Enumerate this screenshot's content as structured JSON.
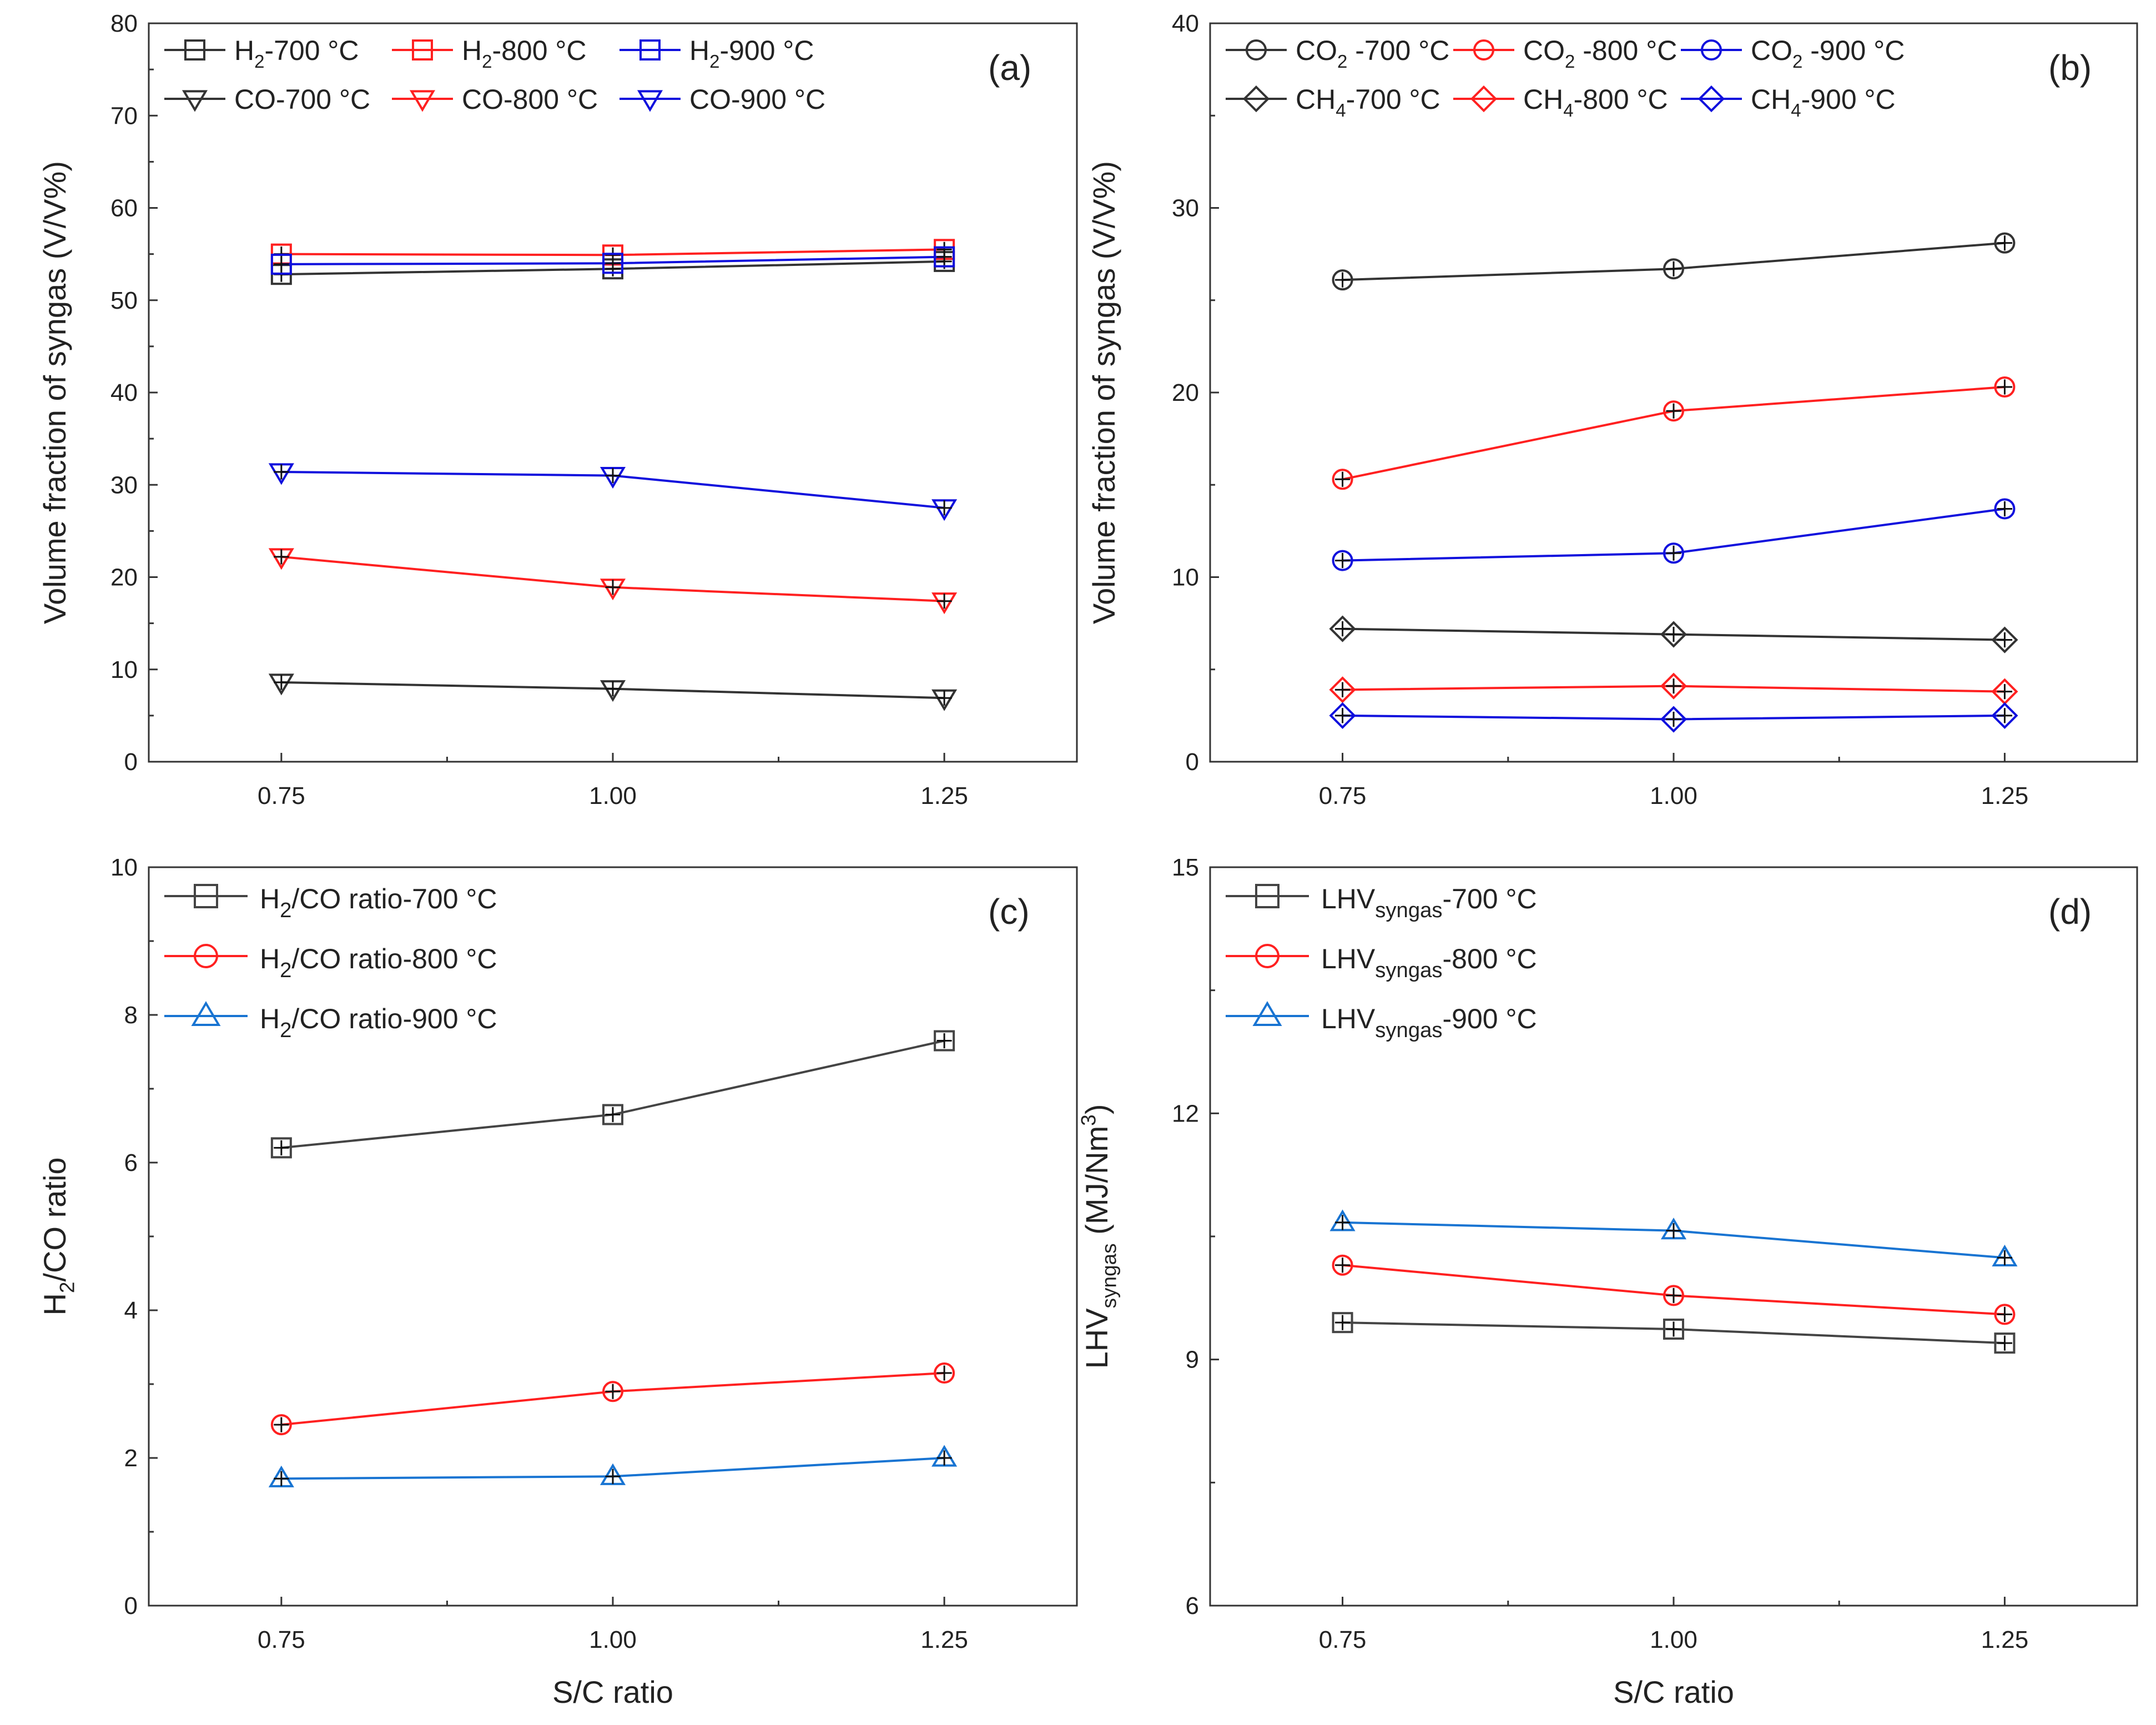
{
  "colors": {
    "c700_a": "#333333",
    "c800": "#ff2020",
    "c900_ab": "#1010dd",
    "c700_cd": "#444444",
    "c900_cd": "#1874d2"
  },
  "chart_data": [
    {
      "id": "a",
      "type": "line",
      "panel_label": "(a)",
      "title": "",
      "xlabel": "",
      "ylabel": "Volume fraction of syngas (V/V%)",
      "x": [
        0.75,
        1.0,
        1.25
      ],
      "xticks": [
        "0.75",
        "1.00",
        "1.25"
      ],
      "xlim": [
        0.65,
        1.35
      ],
      "ylim": [
        0,
        80
      ],
      "yticks": [
        "0",
        "10",
        "20",
        "30",
        "40",
        "50",
        "60",
        "70",
        "80"
      ],
      "legend_position": "top",
      "series": [
        {
          "name": "H2-700 °C",
          "legend": {
            "main": "H",
            "sub": "2",
            "rest": "-700 °C"
          },
          "color": "#333333",
          "marker": "square",
          "values": [
            52.8,
            53.4,
            54.2
          ]
        },
        {
          "name": "H2-800 °C",
          "legend": {
            "main": "H",
            "sub": "2",
            "rest": "-800 °C"
          },
          "color": "#ff2020",
          "marker": "square",
          "values": [
            55.0,
            54.9,
            55.5
          ]
        },
        {
          "name": "H2-900 °C",
          "legend": {
            "main": "H",
            "sub": "2",
            "rest": "-900 °C"
          },
          "color": "#1010dd",
          "marker": "square",
          "values": [
            53.9,
            54.0,
            54.7
          ]
        },
        {
          "name": "CO-700 °C",
          "legend": {
            "main": "CO-700 °C",
            "sub": "",
            "rest": ""
          },
          "color": "#333333",
          "marker": "tri-down",
          "values": [
            8.6,
            7.9,
            6.9
          ]
        },
        {
          "name": "CO-800 °C",
          "legend": {
            "main": "CO-800 °C",
            "sub": "",
            "rest": ""
          },
          "color": "#ff2020",
          "marker": "tri-down",
          "values": [
            22.2,
            18.9,
            17.4
          ]
        },
        {
          "name": "CO-900 °C",
          "legend": {
            "main": "CO-900 °C",
            "sub": "",
            "rest": ""
          },
          "color": "#1010dd",
          "marker": "tri-down",
          "values": [
            31.4,
            31.0,
            27.5
          ]
        }
      ]
    },
    {
      "id": "b",
      "type": "line",
      "panel_label": "(b)",
      "title": "",
      "xlabel": "",
      "ylabel": "Volume fraction of syngas (V/V%)",
      "x": [
        0.75,
        1.0,
        1.25
      ],
      "xticks": [
        "0.75",
        "1.00",
        "1.25"
      ],
      "xlim": [
        0.65,
        1.35
      ],
      "ylim": [
        0,
        40
      ],
      "yticks": [
        "0",
        "10",
        "20",
        "30",
        "40"
      ],
      "legend_position": "top",
      "series": [
        {
          "name": "CO2 -700 °C",
          "legend": {
            "main": "CO",
            "sub": "2",
            "rest": " -700 °C"
          },
          "color": "#333333",
          "marker": "circle",
          "values": [
            26.1,
            26.7,
            28.1
          ]
        },
        {
          "name": "CO2 -800 °C",
          "legend": {
            "main": "CO",
            "sub": "2",
            "rest": " -800 °C"
          },
          "color": "#ff2020",
          "marker": "circle",
          "values": [
            15.3,
            19.0,
            20.3
          ]
        },
        {
          "name": "CO2 -900 °C",
          "legend": {
            "main": "CO",
            "sub": "2",
            "rest": " -900 °C"
          },
          "color": "#1010dd",
          "marker": "circle",
          "values": [
            10.9,
            11.3,
            13.7
          ]
        },
        {
          "name": "CH4-700 °C",
          "legend": {
            "main": "CH",
            "sub": "4",
            "rest": "-700 °C"
          },
          "color": "#333333",
          "marker": "diamond",
          "values": [
            7.2,
            6.9,
            6.6
          ]
        },
        {
          "name": "CH4-800 °C",
          "legend": {
            "main": "CH",
            "sub": "4",
            "rest": "-800 °C"
          },
          "color": "#ff2020",
          "marker": "diamond",
          "values": [
            3.9,
            4.1,
            3.8
          ]
        },
        {
          "name": "CH4-900 °C",
          "legend": {
            "main": "CH",
            "sub": "4",
            "rest": "-900 °C"
          },
          "color": "#1010dd",
          "marker": "diamond",
          "values": [
            2.5,
            2.3,
            2.5
          ]
        }
      ]
    },
    {
      "id": "c",
      "type": "line",
      "panel_label": "(c)",
      "title": "",
      "xlabel": "S/C ratio",
      "ylabel": "H2/CO ratio",
      "ylabel_parts": {
        "main": "H",
        "sub": "2",
        "rest": "/CO ratio"
      },
      "x": [
        0.75,
        1.0,
        1.25
      ],
      "xticks": [
        "0.75",
        "1.00",
        "1.25"
      ],
      "xlim": [
        0.65,
        1.35
      ],
      "ylim": [
        0,
        10
      ],
      "yticks": [
        "0",
        "2",
        "4",
        "6",
        "8",
        "10"
      ],
      "legend_position": "top-left",
      "series": [
        {
          "name": "H2/CO ratio-700 °C",
          "legend": {
            "main": "H",
            "sub": "2",
            "rest": "/CO ratio-700 °C"
          },
          "color": "#444444",
          "marker": "square",
          "values": [
            6.2,
            6.65,
            7.65
          ]
        },
        {
          "name": "H2/CO ratio-800 °C",
          "legend": {
            "main": "H",
            "sub": "2",
            "rest": "/CO ratio-800 °C"
          },
          "color": "#ff2020",
          "marker": "circle",
          "values": [
            2.45,
            2.9,
            3.15
          ]
        },
        {
          "name": "H2/CO ratio-900 °C",
          "legend": {
            "main": "H",
            "sub": "2",
            "rest": "/CO ratio-900 °C"
          },
          "color": "#1874d2",
          "marker": "triangle",
          "values": [
            1.72,
            1.75,
            2.0
          ]
        }
      ]
    },
    {
      "id": "d",
      "type": "line",
      "panel_label": "(d)",
      "title": "",
      "xlabel": "S/C ratio",
      "ylabel": "LHVsyngas (MJ/Nm3)",
      "ylabel_parts": {
        "main": "LHV",
        "sub": "syngas",
        "rest": " (MJ/Nm",
        "sup": "3",
        "end": ")"
      },
      "x": [
        0.75,
        1.0,
        1.25
      ],
      "xticks": [
        "0.75",
        "1.00",
        "1.25"
      ],
      "xlim": [
        0.65,
        1.35
      ],
      "ylim": [
        6,
        15
      ],
      "yticks": [
        "6",
        "9",
        "12",
        "15"
      ],
      "legend_position": "top-left",
      "series": [
        {
          "name": "LHVsyngas-700 °C",
          "legend": {
            "main": "LHV",
            "sub": "syngas",
            "rest": "-700 °C"
          },
          "color": "#444444",
          "marker": "square",
          "values": [
            9.45,
            9.37,
            9.2
          ]
        },
        {
          "name": "LHVsyngas-800 °C",
          "legend": {
            "main": "LHV",
            "sub": "syngas",
            "rest": "-800 °C"
          },
          "color": "#ff2020",
          "marker": "circle",
          "values": [
            10.15,
            9.78,
            9.55
          ]
        },
        {
          "name": "LHVsyngas-900 °C",
          "legend": {
            "main": "LHV",
            "sub": "syngas",
            "rest": "-900 °C"
          },
          "color": "#1874d2",
          "marker": "triangle",
          "values": [
            10.67,
            10.57,
            10.24
          ]
        }
      ]
    }
  ]
}
